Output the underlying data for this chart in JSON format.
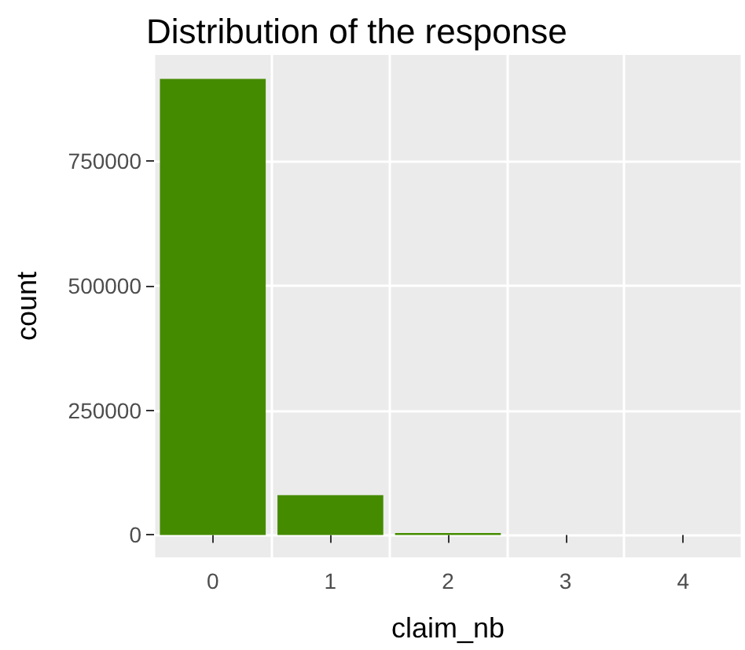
{
  "chart_data": {
    "type": "bar",
    "title": "Distribution of the response",
    "xlabel": "claim_nb",
    "ylabel": "count",
    "categories": [
      "0",
      "1",
      "2",
      "3",
      "4"
    ],
    "values": [
      915000,
      80000,
      4000,
      0,
      0
    ],
    "color": "#458b00",
    "ylim": [
      -45000,
      963000
    ],
    "yticks": [
      0,
      250000,
      500000,
      750000
    ],
    "grid": true
  }
}
